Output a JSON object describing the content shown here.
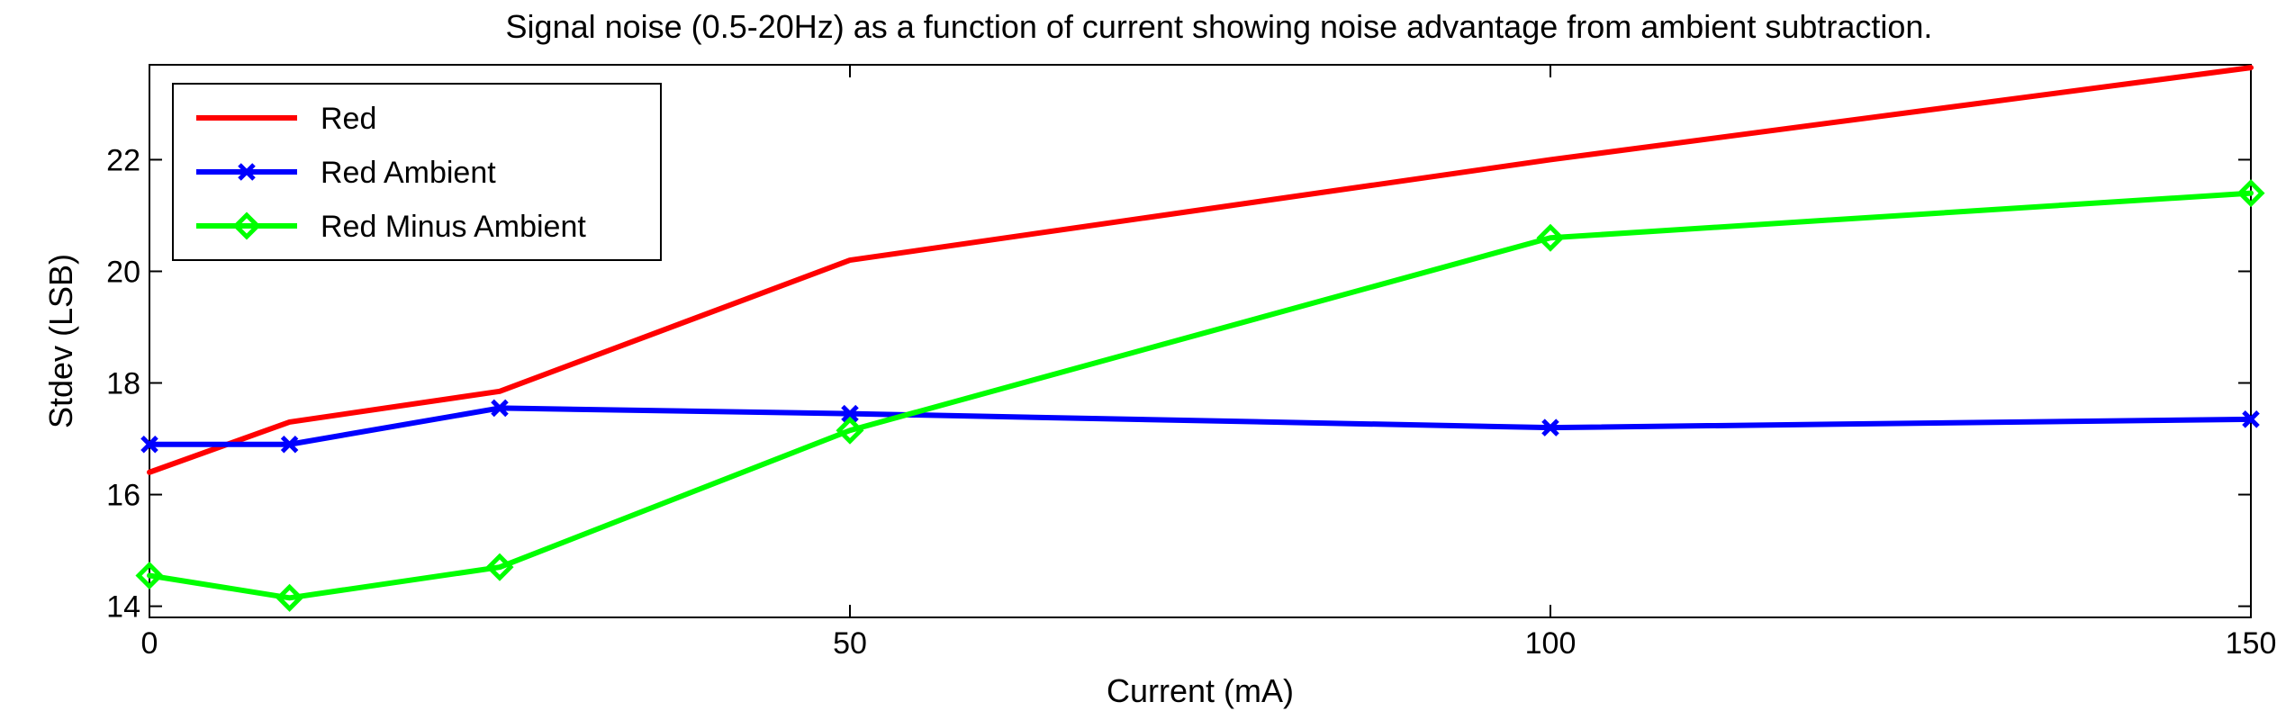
{
  "chart_data": {
    "type": "line",
    "title": "Signal noise (0.5-20Hz) as a function of current showing noise advantage from ambient subtraction.",
    "xlabel": "Current (mA)",
    "ylabel": "Stdev (LSB)",
    "xlim": [
      0,
      150
    ],
    "ylim": [
      13.8,
      23.7
    ],
    "xticks": [
      0,
      50,
      100,
      150
    ],
    "yticks": [
      14,
      16,
      18,
      20,
      22
    ],
    "grid": false,
    "legend_position": "top-left",
    "series": [
      {
        "name": "Red",
        "color": "#ff0000",
        "marker": "none",
        "x": [
          0,
          10,
          25,
          50,
          100,
          150
        ],
        "y": [
          16.4,
          17.3,
          17.85,
          20.2,
          22.0,
          23.65
        ]
      },
      {
        "name": "Red Ambient",
        "color": "#0000ff",
        "marker": "x",
        "x": [
          0,
          10,
          25,
          50,
          100,
          150
        ],
        "y": [
          16.9,
          16.9,
          17.55,
          17.45,
          17.2,
          17.35
        ]
      },
      {
        "name": "Red Minus Ambient",
        "color": "#00ff00",
        "marker": "diamond",
        "x": [
          0,
          10,
          25,
          50,
          100,
          150
        ],
        "y": [
          14.55,
          14.15,
          14.7,
          17.15,
          20.6,
          21.4
        ]
      }
    ]
  }
}
